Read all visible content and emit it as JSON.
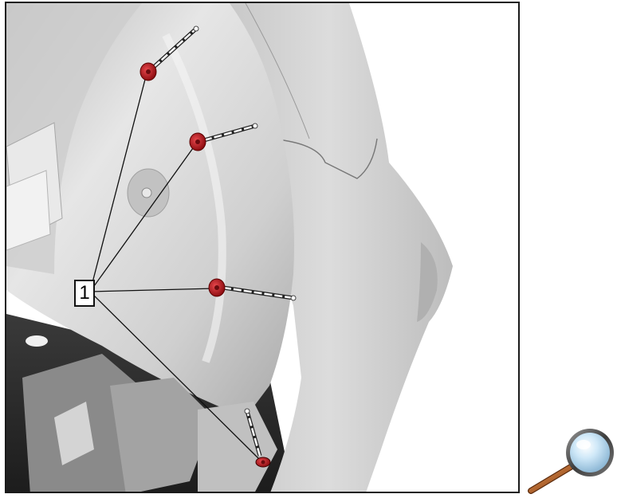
{
  "figure": {
    "callouts": [
      {
        "label": "1"
      }
    ]
  },
  "toolbar": {
    "zoom_icon": "magnifier-icon"
  },
  "colors": {
    "fastener_red": "#c8171d",
    "part_gray": "#d8d8d8",
    "frame_border": "#1a1a1a",
    "lens_blue": "#bfe0f5",
    "handle_brown": "#b5652a"
  }
}
